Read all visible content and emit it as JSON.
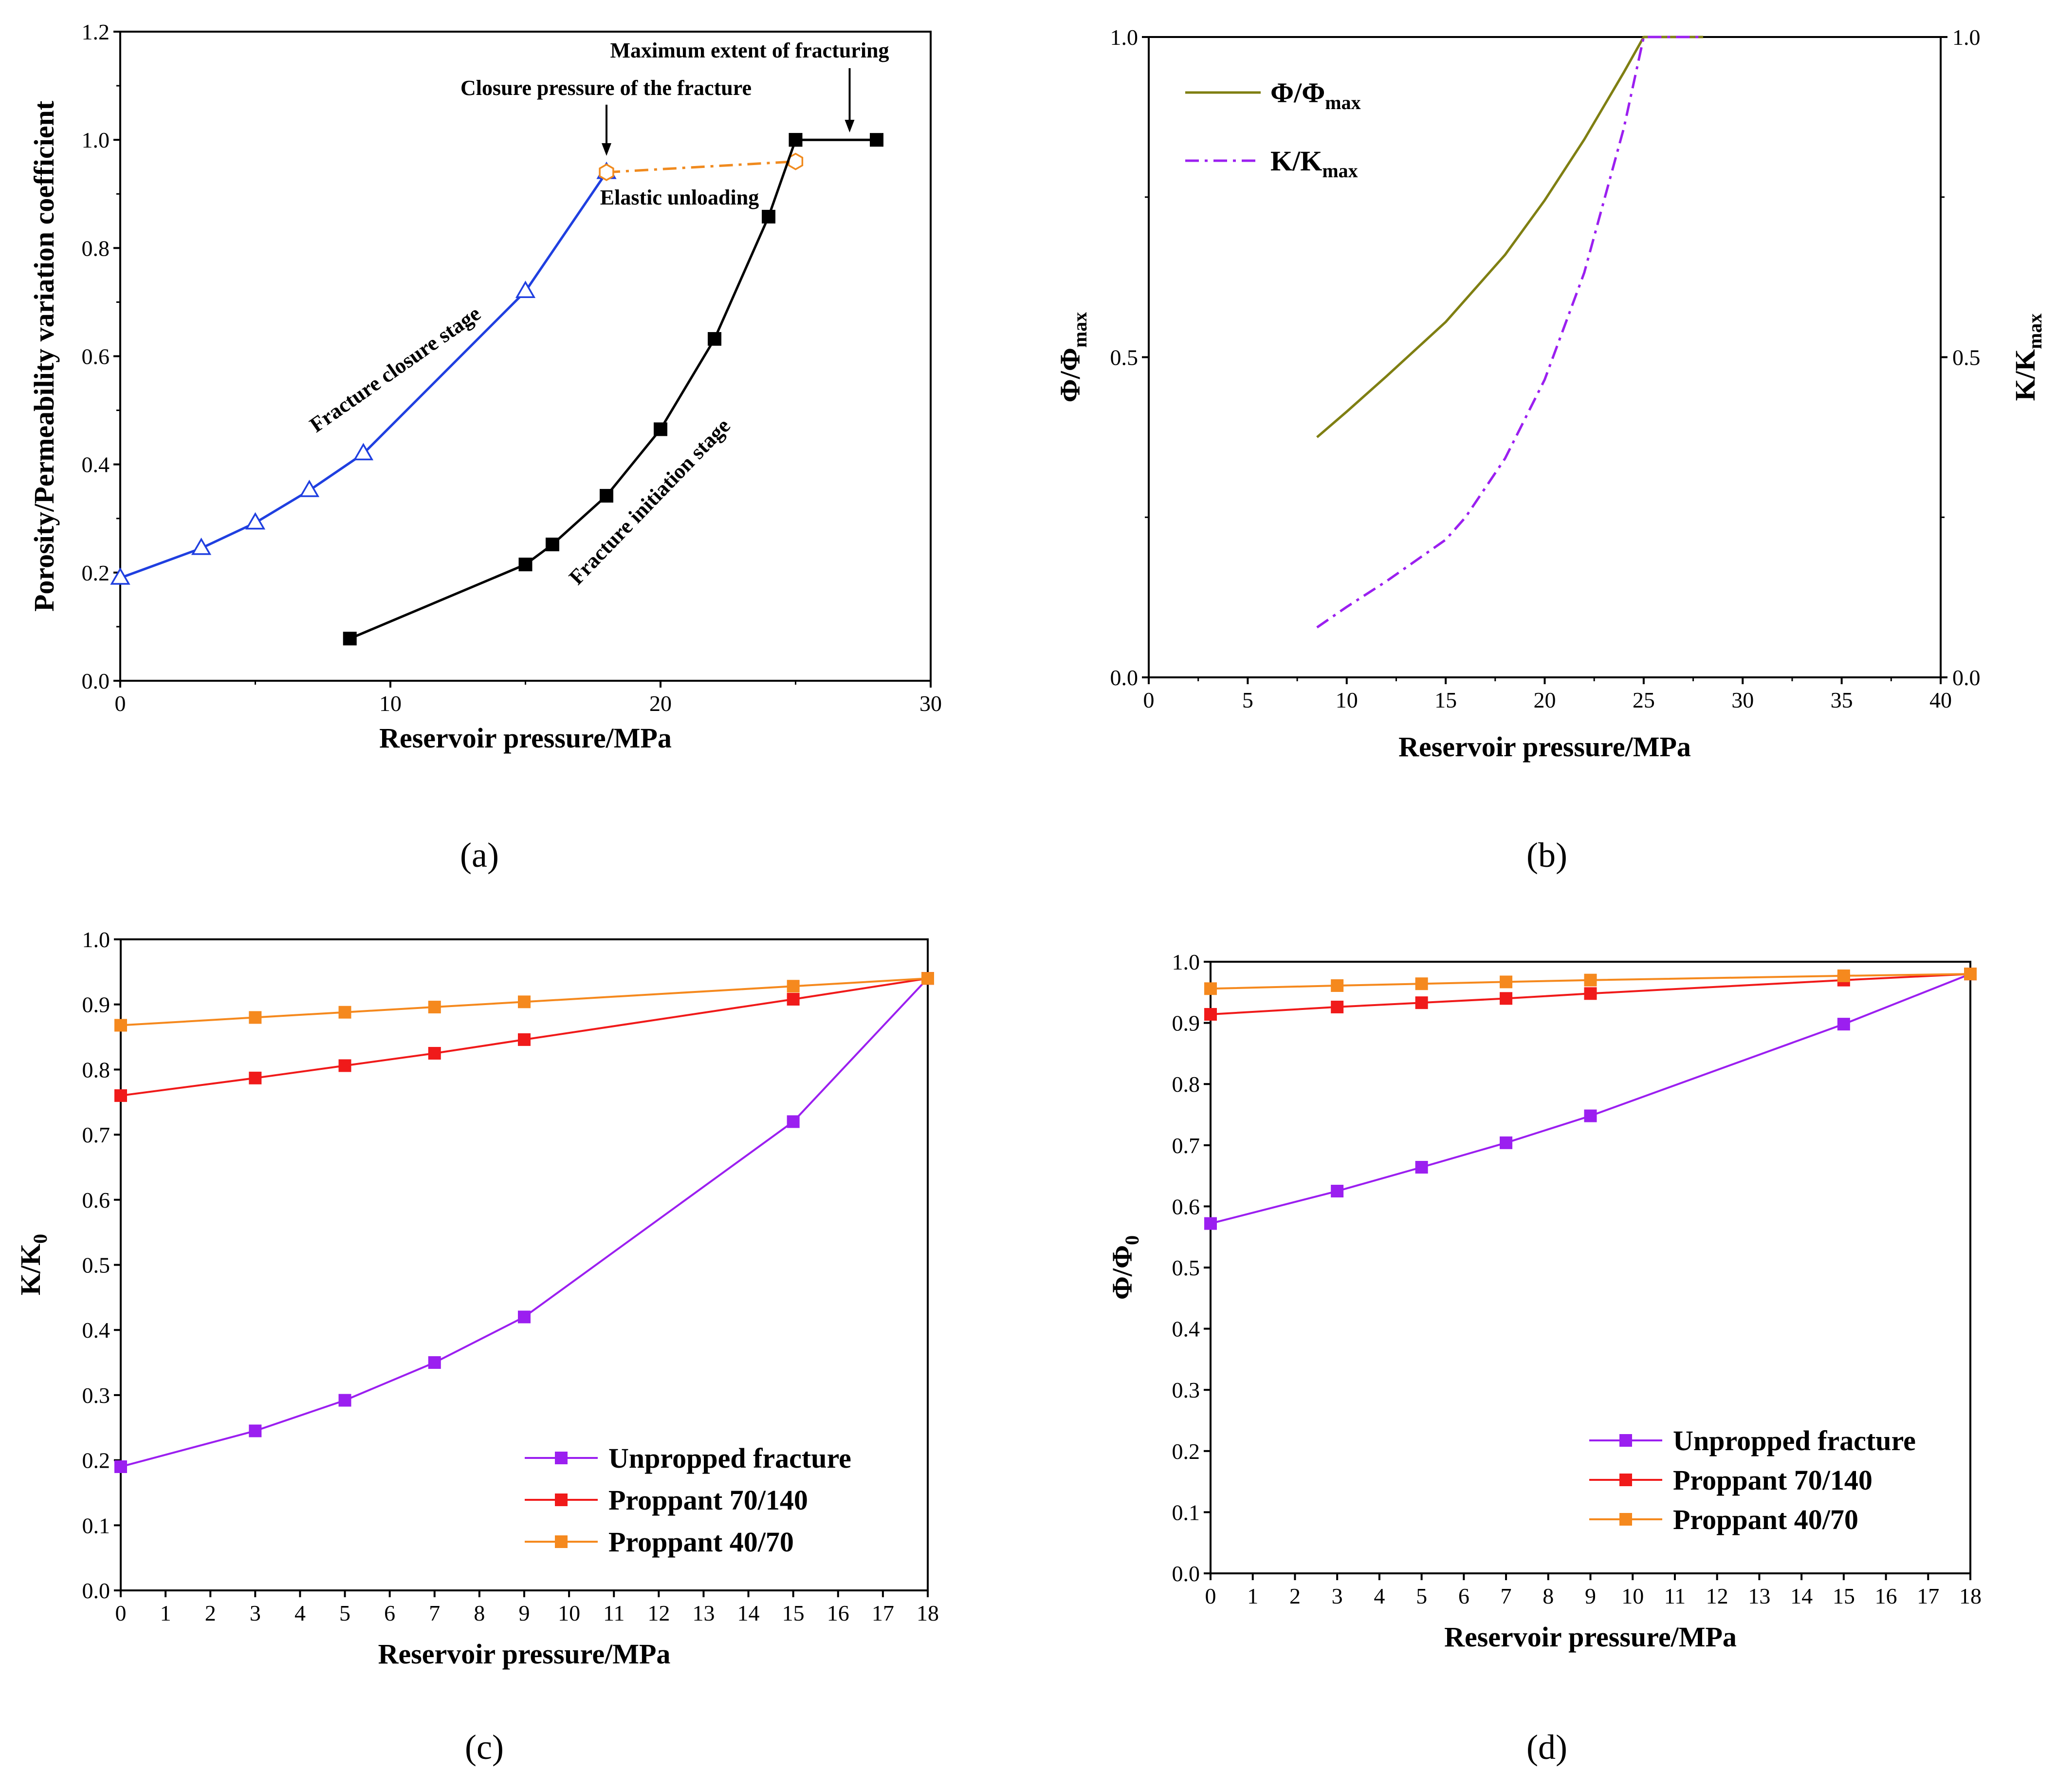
{
  "chart_data": [
    {
      "panel": "a",
      "type": "line",
      "caption": "(a)",
      "xlabel": "Reservoir pressure/MPa",
      "ylabel": "Porosity/Permeability variation coefficient",
      "xlim": [
        0,
        30
      ],
      "ylim": [
        0,
        1.2
      ],
      "xticks": [
        0,
        10,
        20,
        30
      ],
      "yticks": [
        0.0,
        0.2,
        0.4,
        0.6,
        0.8,
        1.0,
        1.2
      ],
      "series": [
        {
          "name": "Fracture closure stage",
          "color": "#1f3fe0",
          "marker": "triangle-open",
          "x": [
            0,
            3,
            5,
            7,
            9,
            15,
            18
          ],
          "y": [
            0.19,
            0.245,
            0.292,
            0.352,
            0.42,
            0.72,
            0.94
          ]
        },
        {
          "name": "Elastic unloading",
          "color": "#f08a1e",
          "marker": "hexagon-open",
          "dash": "dash-dot",
          "x": [
            18,
            25
          ],
          "y": [
            0.94,
            0.96
          ]
        },
        {
          "name": "Fracture initiation stage",
          "color": "#000000",
          "marker": "square",
          "x": [
            8.5,
            15,
            16,
            18,
            20,
            22,
            24,
            25
          ],
          "y": [
            0.078,
            0.215,
            0.252,
            0.342,
            0.465,
            0.632,
            0.858,
            1.0
          ]
        },
        {
          "name": "Maximum extent",
          "color": "#000000",
          "marker": "square",
          "x": [
            25,
            28
          ],
          "y": [
            1.0,
            1.0
          ]
        }
      ],
      "annotations": {
        "closure_pressure": "Closure pressure of the fracture",
        "max_extent": "Maximum extent of fracturing",
        "elastic_unloading": "Elastic unloading",
        "closure_stage": "Fracture closure stage",
        "initiation_stage": "Fracture initiation stage"
      }
    },
    {
      "panel": "b",
      "type": "line",
      "caption": "(b)",
      "xlabel": "Reservoir pressure/MPa",
      "ylabel_left": "Φ/Φ",
      "ylabel_left_sub": "max",
      "ylabel_right": "K/K",
      "ylabel_right_sub": "max",
      "xlim": [
        0,
        40
      ],
      "ylim": [
        0,
        1.0
      ],
      "xticks": [
        0,
        5,
        10,
        15,
        20,
        25,
        30,
        35,
        40
      ],
      "yticks_left": [
        "0.0",
        "0.5",
        "1.0"
      ],
      "yticks_right": [
        "0.0",
        "0.5",
        "1.0"
      ],
      "series": [
        {
          "name": "Φ/Φ",
          "sub": "max",
          "color": "#7f7f12",
          "dash": "solid",
          "x": [
            8.5,
            10,
            12,
            15,
            16,
            18,
            20,
            22,
            24,
            25,
            26,
            28
          ],
          "y": [
            0.375,
            0.415,
            0.47,
            0.555,
            0.59,
            0.66,
            0.745,
            0.84,
            0.945,
            1.0,
            1.0,
            1.0
          ]
        },
        {
          "name": "K/K",
          "sub": "max",
          "color": "#9b1ff0",
          "dash": "dash-dot",
          "x": [
            8.5,
            10,
            12,
            15,
            16,
            18,
            20,
            22,
            24,
            25,
            26,
            28
          ],
          "y": [
            0.078,
            0.11,
            0.15,
            0.215,
            0.25,
            0.342,
            0.465,
            0.632,
            0.858,
            1.0,
            1.0,
            1.0
          ]
        }
      ]
    },
    {
      "panel": "c",
      "type": "line",
      "caption": "(c)",
      "xlabel": "Reservoir pressure/MPa",
      "ylabel": "K/K",
      "ylabel_sub": "0",
      "xlim": [
        0,
        18
      ],
      "ylim": [
        0,
        1.0
      ],
      "xticks": [
        0,
        1,
        2,
        3,
        4,
        5,
        6,
        7,
        8,
        9,
        10,
        11,
        12,
        13,
        14,
        15,
        16,
        17,
        18
      ],
      "yticks": [
        "0.0",
        "0.1",
        "0.2",
        "0.3",
        "0.4",
        "0.5",
        "0.6",
        "0.7",
        "0.8",
        "0.9",
        "1.0"
      ],
      "series": [
        {
          "name": "Unpropped fracture",
          "color": "#9b1ff0",
          "x": [
            0,
            3,
            5,
            7,
            9,
            15,
            18
          ],
          "y": [
            0.19,
            0.245,
            0.292,
            0.35,
            0.42,
            0.72,
            0.94
          ]
        },
        {
          "name": "Proppant 70/140",
          "color": "#f01a1a",
          "x": [
            0,
            3,
            5,
            7,
            9,
            15,
            18
          ],
          "y": [
            0.76,
            0.787,
            0.806,
            0.825,
            0.846,
            0.908,
            0.94
          ]
        },
        {
          "name": "Proppant 40/70",
          "color": "#f5891e",
          "x": [
            0,
            3,
            5,
            7,
            9,
            15,
            18
          ],
          "y": [
            0.868,
            0.88,
            0.888,
            0.896,
            0.904,
            0.928,
            0.94
          ]
        }
      ]
    },
    {
      "panel": "d",
      "type": "line",
      "caption": "(d)",
      "xlabel": "Reservoir pressure/MPa",
      "ylabel": "Φ/Φ",
      "ylabel_sub": "0",
      "xlim": [
        0,
        18
      ],
      "ylim": [
        0,
        1.0
      ],
      "xticks": [
        0,
        1,
        2,
        3,
        4,
        5,
        6,
        7,
        8,
        9,
        10,
        11,
        12,
        13,
        14,
        15,
        16,
        17,
        18
      ],
      "yticks": [
        "0.0",
        "0.1",
        "0.2",
        "0.3",
        "0.4",
        "0.5",
        "0.6",
        "0.7",
        "0.8",
        "0.9",
        "1.0"
      ],
      "series": [
        {
          "name": "Unpropped fracture",
          "color": "#9b1ff0",
          "x": [
            0,
            3,
            5,
            7,
            9,
            15,
            18
          ],
          "y": [
            0.572,
            0.625,
            0.664,
            0.704,
            0.748,
            0.898,
            0.98
          ]
        },
        {
          "name": "Proppant 70/140",
          "color": "#f01a1a",
          "x": [
            0,
            3,
            5,
            7,
            9,
            15,
            18
          ],
          "y": [
            0.914,
            0.926,
            0.933,
            0.94,
            0.948,
            0.97,
            0.98
          ]
        },
        {
          "name": "Proppant 40/70",
          "color": "#f5891e",
          "x": [
            0,
            3,
            5,
            7,
            9,
            15,
            18
          ],
          "y": [
            0.956,
            0.961,
            0.964,
            0.967,
            0.97,
            0.977,
            0.98
          ]
        }
      ]
    }
  ]
}
